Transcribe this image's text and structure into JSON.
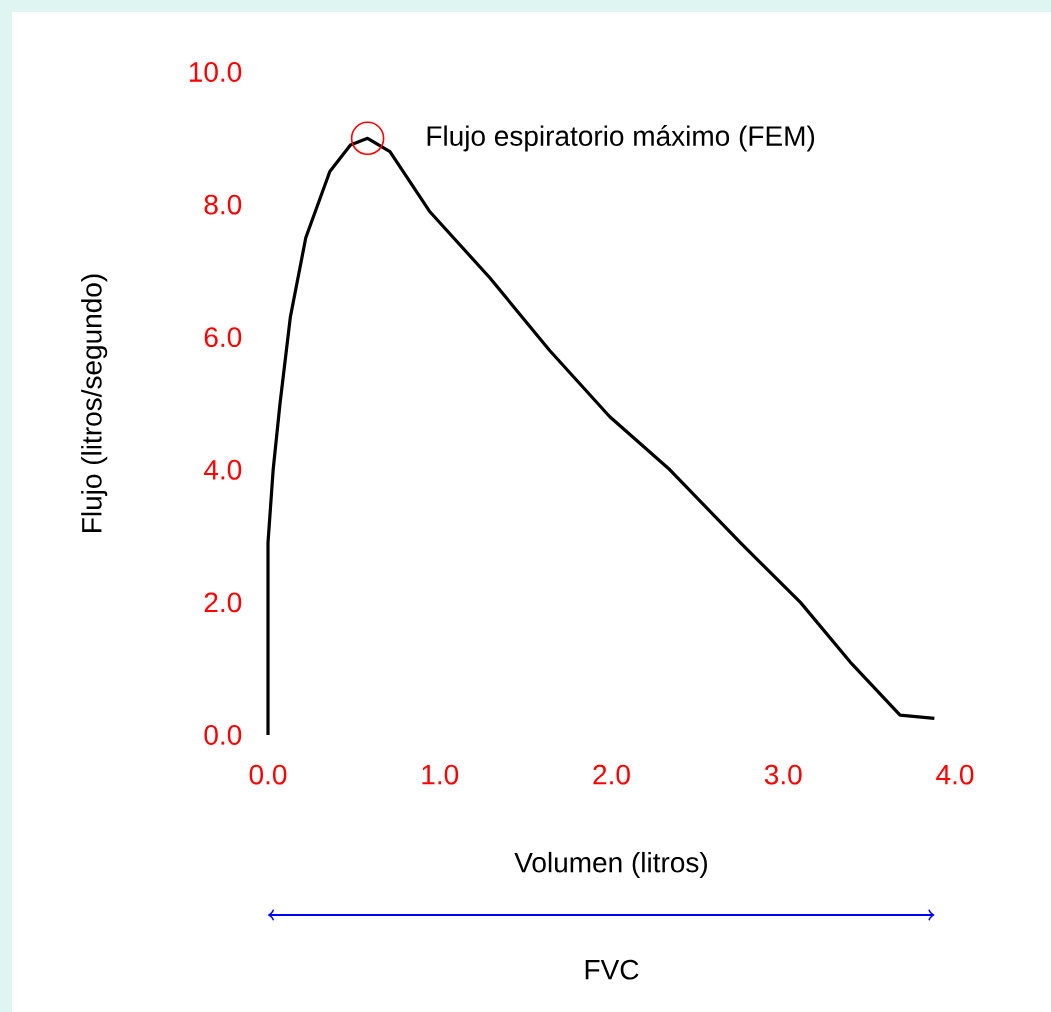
{
  "chart_data": {
    "type": "line",
    "xlabel": "Volumen (litros)",
    "ylabel": "Flujo (litros/segundo)",
    "x": [
      0,
      0,
      0.03,
      0.07,
      0.13,
      0.22,
      0.36,
      0.48,
      0.58,
      0.71,
      0.94,
      1.29,
      1.64,
      1.99,
      2.34,
      2.75,
      3.1,
      3.39,
      3.68,
      3.88
    ],
    "series": [
      {
        "color": "#000000",
        "values": [
          0,
          2.9,
          4.0,
          5.0,
          6.3,
          7.5,
          8.5,
          8.9,
          9.0,
          8.8,
          7.9,
          6.9,
          5.8,
          4.8,
          4.0,
          2.9,
          2.0,
          1.1,
          0.3,
          0.25
        ]
      }
    ],
    "xlim": [
      0,
      4
    ],
    "ylim": [
      0,
      10
    ],
    "xticks": [
      {
        "value": 0,
        "label": "0.0"
      },
      {
        "value": 1,
        "label": "1.0"
      },
      {
        "value": 2,
        "label": "2.0"
      },
      {
        "value": 3,
        "label": "3.0"
      },
      {
        "value": 4,
        "label": "4.0"
      }
    ],
    "yticks": [
      {
        "value": 0,
        "label": "0.0"
      },
      {
        "value": 2,
        "label": "2.0"
      },
      {
        "value": 4,
        "label": "4.0"
      },
      {
        "value": 6,
        "label": "6.0"
      },
      {
        "value": 8,
        "label": "8.0"
      },
      {
        "value": 10,
        "label": "10.0"
      }
    ],
    "annotations": [
      {
        "text": "Flujo espiratorio máximo (FEM)",
        "x": 0.58,
        "y": 9.0
      },
      "FVC"
    ]
  }
}
